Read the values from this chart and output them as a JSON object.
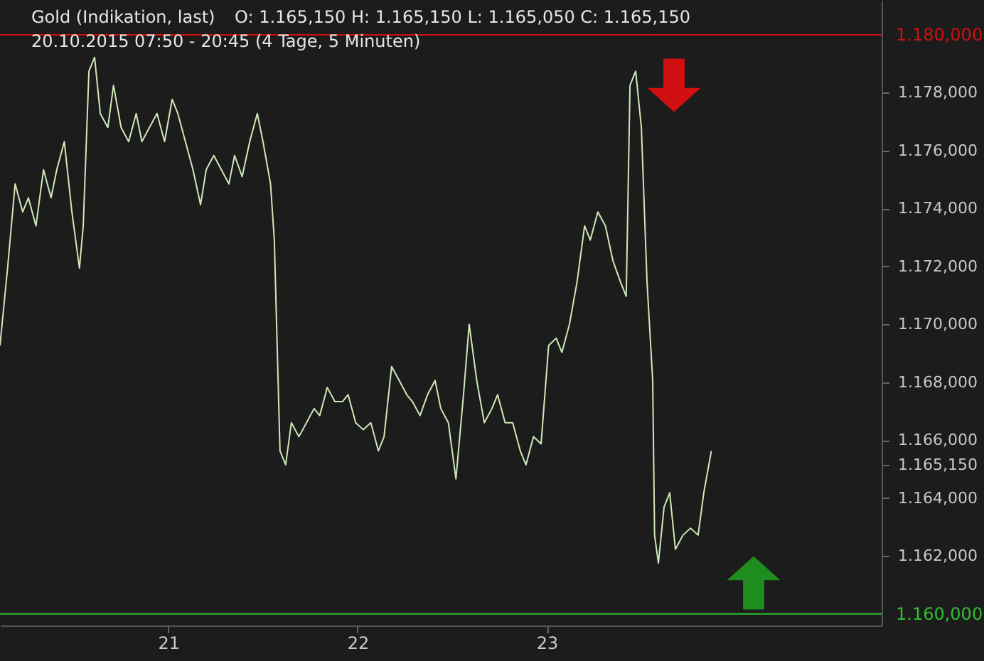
{
  "chart_data": {
    "type": "line",
    "title": "Gold (Indikation, last)",
    "subtitle": "20.10.2015 07:50 - 20:45 (4 Tage, 5 Minuten)",
    "annotations": [
      "O: 1.165,150  H: 1.165,150  L: 1.165,050  C: 1.165,150"
    ],
    "series": [
      {
        "color": "#cfe8b8",
        "x": [
          20.11,
          20.15,
          20.19,
          20.23,
          20.26,
          20.3,
          20.34,
          20.38,
          20.41,
          20.45,
          20.49,
          20.53,
          20.55,
          20.58,
          20.61,
          20.64,
          20.68,
          20.71,
          20.75,
          20.79,
          20.83,
          20.86,
          20.9,
          20.94,
          20.98,
          21.02,
          21.05,
          21.09,
          21.13,
          21.17,
          21.2,
          21.24,
          21.28,
          21.32,
          21.35,
          21.39,
          21.43,
          21.47,
          21.5,
          21.54,
          21.56,
          21.59,
          21.62,
          21.65,
          21.69,
          21.73,
          21.77,
          21.8,
          21.84,
          21.88,
          21.92,
          21.95,
          21.99,
          22.03,
          22.07,
          22.11,
          22.14,
          22.18,
          22.22,
          22.26,
          22.29,
          22.33,
          22.37,
          22.41,
          22.44,
          22.48,
          22.52,
          22.56,
          22.59,
          22.63,
          22.67,
          22.71,
          22.74,
          22.78,
          22.82,
          22.86,
          22.89,
          22.93,
          22.97,
          23.01,
          23.05,
          23.08,
          23.12,
          23.16,
          23.2,
          23.23,
          23.27,
          23.31,
          23.35,
          23.39,
          23.42,
          23.44,
          23.47,
          23.5,
          23.53,
          23.56,
          23.57,
          23.59,
          23.62,
          23.65,
          23.68,
          23.72,
          23.76,
          23.8,
          23.83,
          23.87
        ],
        "values": [
          1169.27,
          1171.94,
          1174.85,
          1173.88,
          1174.37,
          1173.4,
          1175.34,
          1174.37,
          1175.34,
          1176.31,
          1173.88,
          1171.94,
          1173.4,
          1178.74,
          1179.22,
          1177.28,
          1176.8,
          1178.25,
          1176.8,
          1176.31,
          1177.28,
          1176.31,
          1176.8,
          1177.28,
          1176.31,
          1177.77,
          1177.28,
          1176.31,
          1175.34,
          1174.13,
          1175.34,
          1175.83,
          1175.34,
          1174.85,
          1175.83,
          1175.1,
          1176.31,
          1177.28,
          1176.31,
          1174.85,
          1172.91,
          1165.63,
          1165.15,
          1166.6,
          1166.12,
          1166.6,
          1167.09,
          1166.85,
          1167.82,
          1167.33,
          1167.33,
          1167.57,
          1166.6,
          1166.36,
          1166.6,
          1165.63,
          1166.12,
          1168.54,
          1168.06,
          1167.57,
          1167.33,
          1166.85,
          1167.57,
          1168.06,
          1167.09,
          1166.6,
          1164.66,
          1167.57,
          1170.0,
          1168.06,
          1166.6,
          1167.09,
          1167.57,
          1166.6,
          1166.6,
          1165.63,
          1165.15,
          1166.12,
          1165.87,
          1169.27,
          1169.52,
          1169.03,
          1170.0,
          1171.46,
          1173.4,
          1172.91,
          1173.88,
          1173.4,
          1172.19,
          1171.46,
          1170.97,
          1178.25,
          1178.74,
          1176.8,
          1171.46,
          1168.06,
          1162.72,
          1161.75,
          1163.69,
          1164.18,
          1162.23,
          1162.72,
          1162.96,
          1162.72,
          1164.18,
          1165.63
        ]
      }
    ],
    "xlim": [
      20.11,
      24.77
    ],
    "xticks": [
      21,
      22,
      23
    ],
    "ylim": [
      1159.6,
      1181.2
    ],
    "yticks": [
      {
        "value": 1162,
        "label": "1.162,000"
      },
      {
        "value": 1164,
        "label": "1.164,000"
      },
      {
        "value": 1165.15,
        "label": "1.165,150"
      },
      {
        "value": 1166,
        "label": "1.166,000"
      },
      {
        "value": 1168,
        "label": "1.168,000"
      },
      {
        "value": 1170,
        "label": "1.170,000"
      },
      {
        "value": 1172,
        "label": "1.172,000"
      },
      {
        "value": 1174,
        "label": "1.174,000"
      },
      {
        "value": 1176,
        "label": "1.176,000"
      },
      {
        "value": 1178,
        "label": "1.178,000"
      }
    ],
    "ref_lines": [
      {
        "axis": "y",
        "value": 1180,
        "label": "1.180,000",
        "color": "#d01010"
      },
      {
        "axis": "y",
        "value": 1160,
        "label": "1.160,000",
        "color": "#30c030"
      }
    ],
    "grid": false,
    "marker": "none",
    "line_style": "solid"
  }
}
